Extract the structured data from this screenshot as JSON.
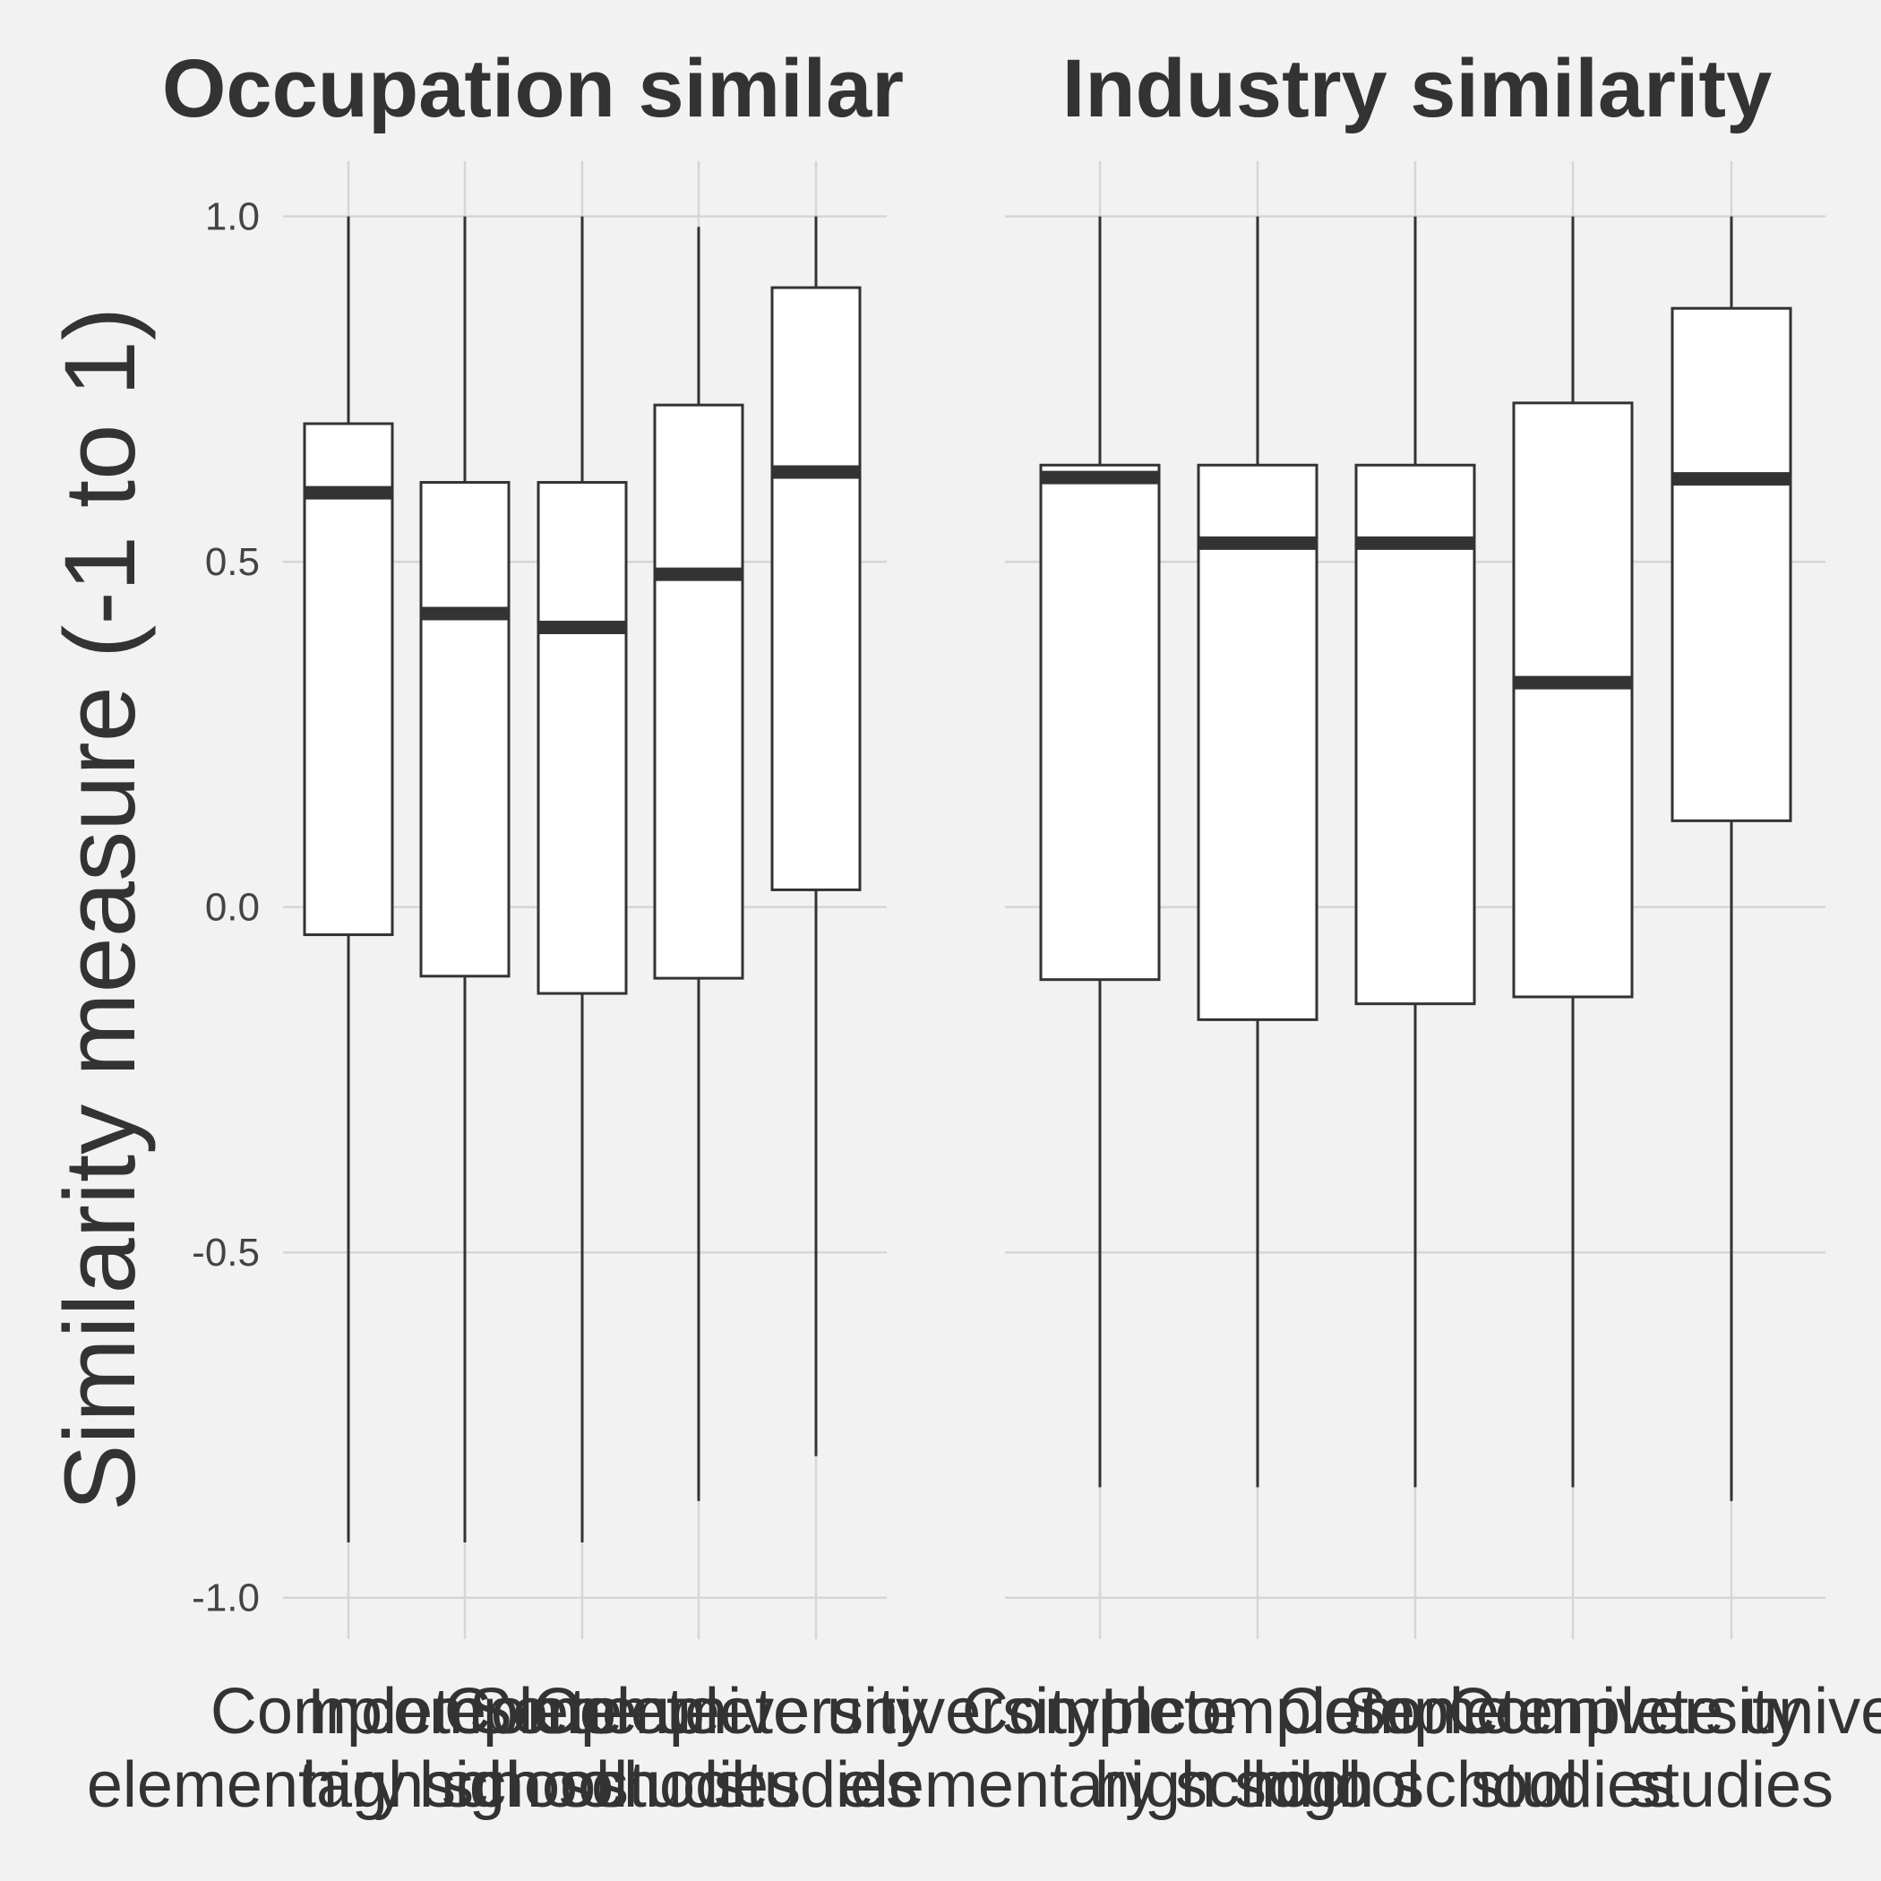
{
  "chart_data": {
    "type": "boxplot",
    "ylabel": "Similarity measure (-1 to 1)",
    "ylim": [
      -1.06,
      1.08
    ],
    "yticks": [
      {
        "value": -1.0,
        "label": "-1.0"
      },
      {
        "value": -0.5,
        "label": "-0.5"
      },
      {
        "value": 0.0,
        "label": "0.0"
      },
      {
        "value": 0.5,
        "label": "0.5"
      },
      {
        "value": 1.0,
        "label": "1.0"
      }
    ],
    "categories": [
      [
        "Complete",
        "elementary school"
      ],
      [
        "Incomplete",
        "high school"
      ],
      [
        "Complete",
        "high school"
      ],
      [
        "Some university",
        "studies"
      ],
      [
        "Complete university",
        "studies"
      ]
    ],
    "panels": [
      {
        "title": "Occupation similar",
        "boxes": [
          {
            "lower": -0.92,
            "q1": -0.04,
            "median": 0.6,
            "q3": 0.7,
            "upper": 1.0
          },
          {
            "lower": -0.92,
            "q1": -0.1,
            "median": 0.425,
            "q3": 0.615,
            "upper": 1.0
          },
          {
            "lower": -0.92,
            "q1": -0.125,
            "median": 0.405,
            "q3": 0.615,
            "upper": 1.0
          },
          {
            "lower": -0.86,
            "q1": -0.103,
            "median": 0.482,
            "q3": 0.727,
            "upper": 0.985
          },
          {
            "lower": -0.795,
            "q1": 0.025,
            "median": 0.63,
            "q3": 0.897,
            "upper": 1.0
          }
        ]
      },
      {
        "title": "Industry similarity",
        "boxes": [
          {
            "lower": -0.84,
            "q1": -0.105,
            "median": 0.622,
            "q3": 0.64,
            "upper": 1.0
          },
          {
            "lower": -0.84,
            "q1": -0.163,
            "median": 0.527,
            "q3": 0.64,
            "upper": 1.0
          },
          {
            "lower": -0.84,
            "q1": -0.14,
            "median": 0.527,
            "q3": 0.64,
            "upper": 1.0
          },
          {
            "lower": -0.84,
            "q1": -0.13,
            "median": 0.325,
            "q3": 0.73,
            "upper": 1.0
          },
          {
            "lower": -0.86,
            "q1": 0.125,
            "median": 0.62,
            "q3": 0.867,
            "upper": 1.0
          }
        ]
      }
    ]
  }
}
